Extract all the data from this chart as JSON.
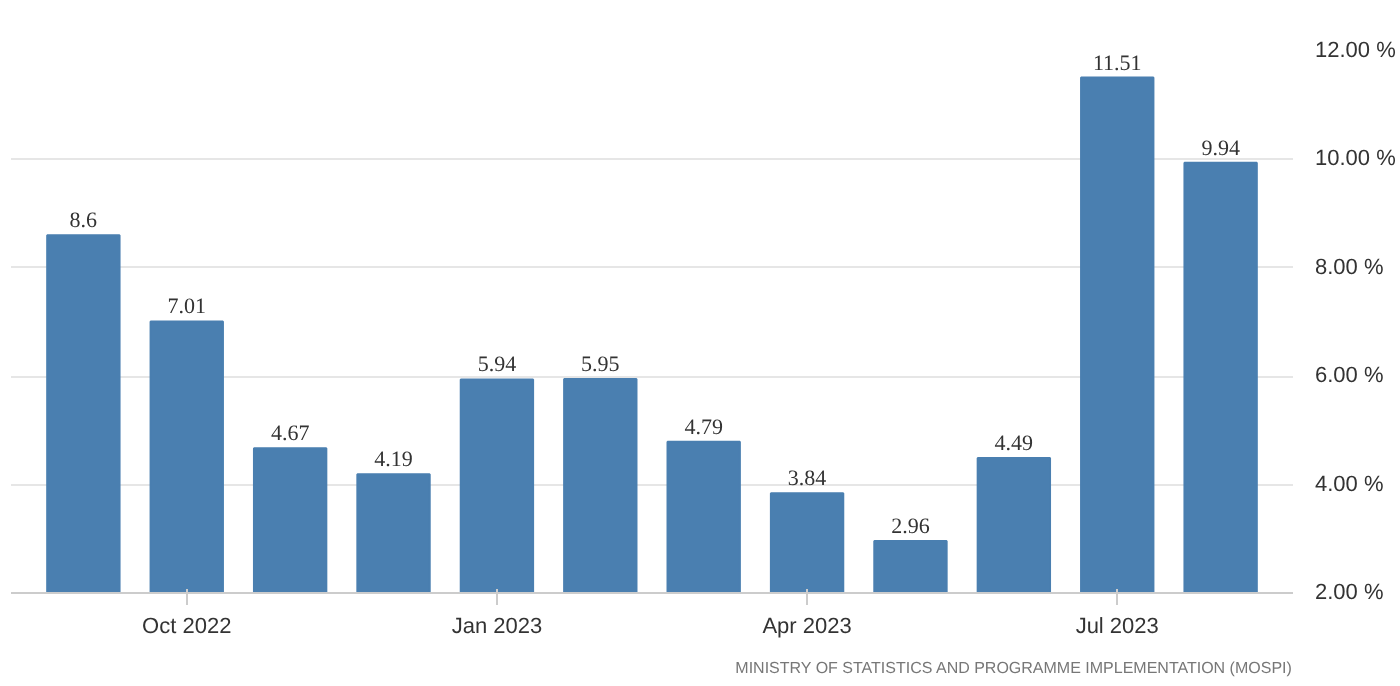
{
  "chart_data": {
    "type": "bar",
    "categories": [
      null,
      "Oct 2022",
      null,
      null,
      "Jan 2023",
      null,
      null,
      "Apr 2023",
      null,
      null,
      "Jul 2023",
      null
    ],
    "values": [
      8.6,
      7.01,
      4.67,
      4.19,
      5.94,
      5.95,
      4.79,
      3.84,
      2.96,
      4.49,
      11.51,
      9.94
    ],
    "color": "#4a7fb0",
    "ylim": [
      2,
      12
    ],
    "yticks": [
      {
        "value": 2,
        "label": "2.00 %"
      },
      {
        "value": 4,
        "label": "4.00 %"
      },
      {
        "value": 6,
        "label": "6.00 %"
      },
      {
        "value": 8,
        "label": "8.00 %"
      },
      {
        "value": 10,
        "label": "10.00 %"
      },
      {
        "value": 12,
        "label": "12.00 %"
      }
    ],
    "grid": "y",
    "data_labels": true,
    "annotations": [
      "MINISTRY OF STATISTICS AND PROGRAMME IMPLEMENTATION (MOSPI)"
    ]
  }
}
